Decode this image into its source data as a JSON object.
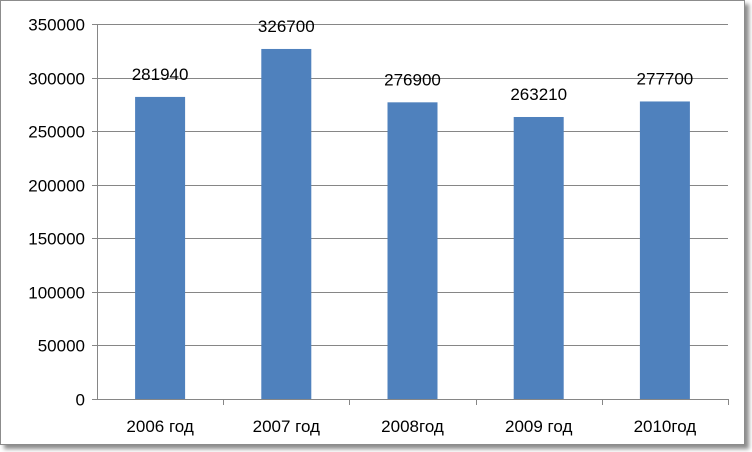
{
  "chart_data": {
    "type": "bar",
    "title": "",
    "xlabel": "",
    "ylabel": "",
    "categories": [
      "2006 год",
      "2007 год",
      "2008год",
      "2009 год",
      "2010год"
    ],
    "values": [
      281940,
      326700,
      276900,
      263210,
      277700
    ],
    "data_labels": [
      "281940",
      "326700",
      "276900",
      "263210",
      "277700"
    ],
    "ylim": [
      0,
      350000
    ],
    "yticks": [
      0,
      50000,
      100000,
      150000,
      200000,
      250000,
      300000,
      350000
    ],
    "ytick_labels": [
      "0",
      "50000",
      "100000",
      "150000",
      "200000",
      "250000",
      "300000",
      "350000"
    ],
    "grid": true,
    "legend": "none",
    "bar_color": "#4f81bd",
    "gridline_color": "#868686"
  }
}
